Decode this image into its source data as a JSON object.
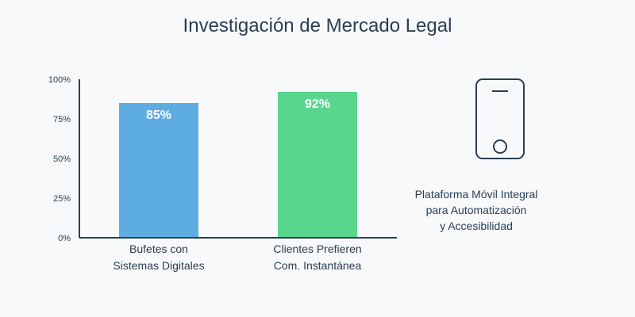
{
  "chart_data": {
    "type": "bar",
    "title": "Investigación de Mercado Legal",
    "xlabel": "",
    "ylabel": "",
    "ylim": [
      0,
      100
    ],
    "yticks": [
      "100%",
      "75%",
      "50%",
      "25%",
      "0%"
    ],
    "ytick_values": [
      100,
      75,
      50,
      25,
      0
    ],
    "grid": false,
    "categories": [
      [
        "Bufetes con",
        "Sistemas Digitales"
      ],
      [
        "Clientes Prefieren",
        "Com. Instantánea"
      ]
    ],
    "values": [
      85,
      92
    ],
    "value_labels": [
      "85%",
      "92%"
    ],
    "bar_colors": [
      "#5dade2",
      "#58d68d"
    ]
  },
  "side_panel": {
    "icon": "smartphone-icon",
    "lines": [
      "Plataforma Móvil Integral",
      "para Automatización",
      "y Accesibilidad"
    ]
  },
  "colors": {
    "text": "#2c3e50",
    "axis": "#2c3e50",
    "background": "#f7f9fb"
  }
}
